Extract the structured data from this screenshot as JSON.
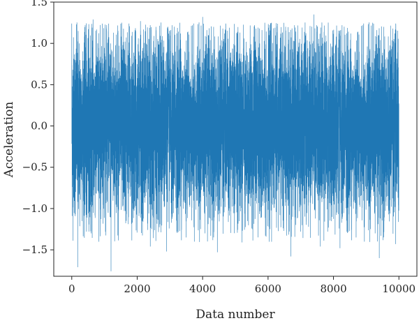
{
  "chart_data": {
    "type": "line",
    "title": "",
    "xlabel": "Data number",
    "ylabel": "Acceleration",
    "xlim": [
      -550,
      10550
    ],
    "ylim": [
      -1.82,
      1.5
    ],
    "x_ticks": [
      0,
      2000,
      4000,
      6000,
      8000,
      10000
    ],
    "x_tick_labels": [
      "0",
      "2000",
      "4000",
      "6000",
      "8000",
      "10000"
    ],
    "y_ticks": [
      1.5,
      1.0,
      0.5,
      0.0,
      -0.5,
      -1.0,
      -1.5
    ],
    "y_tick_labels": [
      "1.5",
      "1.0",
      "0.5",
      "0.0",
      "−0.5",
      "−1.0",
      "−1.5"
    ],
    "grid": false,
    "legend": "none",
    "series": [
      {
        "color": "#1f77b4",
        "x_range": [
          0,
          10000
        ],
        "n_points": 10000,
        "approx_max": 1.35,
        "approx_min": -1.76,
        "core_band": [
          -0.9,
          0.9
        ],
        "extremes": [
          {
            "x": 0,
            "y": 1.24
          },
          {
            "x": 180,
            "y": -1.71
          },
          {
            "x": 410,
            "y": 1.22
          },
          {
            "x": 650,
            "y": 1.29
          },
          {
            "x": 1200,
            "y": -1.76
          },
          {
            "x": 1750,
            "y": 1.24
          },
          {
            "x": 2100,
            "y": 1.27
          },
          {
            "x": 2400,
            "y": -1.46
          },
          {
            "x": 2900,
            "y": -1.52
          },
          {
            "x": 3300,
            "y": 1.25
          },
          {
            "x": 4000,
            "y": 1.32
          },
          {
            "x": 4450,
            "y": -1.53
          },
          {
            "x": 5200,
            "y": -1.41
          },
          {
            "x": 5900,
            "y": 1.25
          },
          {
            "x": 6700,
            "y": -1.58
          },
          {
            "x": 7400,
            "y": 1.35
          },
          {
            "x": 7600,
            "y": -1.46
          },
          {
            "x": 8200,
            "y": -1.48
          },
          {
            "x": 9200,
            "y": 1.25
          },
          {
            "x": 9400,
            "y": -1.6
          },
          {
            "x": 9900,
            "y": -1.43
          }
        ]
      }
    ]
  }
}
